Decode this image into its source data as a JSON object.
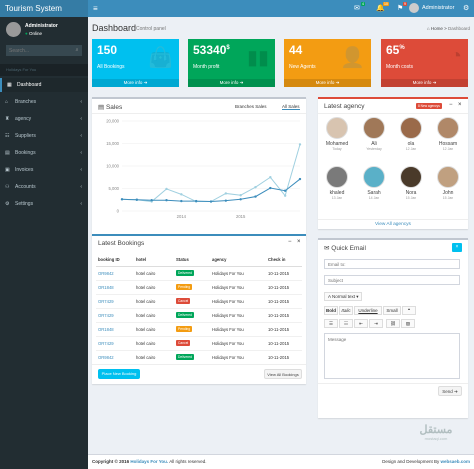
{
  "app": {
    "title": "Tourism System"
  },
  "topbar": {
    "badge_mail": "4",
    "badge_notif": "10",
    "badge_flag": "9",
    "user": "Administrator"
  },
  "sidebar": {
    "user_name": "Administrator",
    "status": "Online",
    "search_placeholder": "Search...",
    "section": "Holidays For You",
    "items": [
      {
        "label": "Dashboard",
        "active": true
      },
      {
        "label": "Branches"
      },
      {
        "label": "agency"
      },
      {
        "label": "Suppliers"
      },
      {
        "label": "Bookings"
      },
      {
        "label": "Invoices"
      },
      {
        "label": "Accounts"
      },
      {
        "label": "Settings"
      }
    ]
  },
  "header": {
    "title": "Dashboard",
    "subtitle": "Control panel",
    "crumb_home": "Home",
    "crumb_current": "Dashboard"
  },
  "stats": [
    {
      "value": "150",
      "label": "All Bookings",
      "more": "More info",
      "color": "#00c0ef",
      "icon": "bag-icon"
    },
    {
      "value": "53340",
      "suffix": "$",
      "label": "Month profit",
      "more": "More info",
      "color": "#00a65a",
      "icon": "bars-icon"
    },
    {
      "value": "44",
      "label": "New Agents",
      "more": "More info",
      "color": "#f39c12",
      "icon": "user-add-icon"
    },
    {
      "value": "65",
      "suffix": "%",
      "label": "Month costs",
      "more": "More info",
      "color": "#dd4b39",
      "icon": "pie-icon"
    }
  ],
  "sales": {
    "title": "Sales",
    "tab1": "Branches Sales",
    "tab2": "All Sales"
  },
  "chart_data": {
    "type": "line",
    "title": "",
    "x": [
      "2013 Q1",
      "2013 Q2",
      "2013 Q3",
      "2013 Q4",
      "2014 Q1",
      "2014 Q2",
      "2014 Q3",
      "2014 Q4",
      "2015 Q1",
      "2015 Q2",
      "2015 Q3",
      "2015 Q4",
      "2016 Q1"
    ],
    "series": [
      {
        "values": [
          2600,
          2500,
          2100,
          4900,
          3700,
          2100,
          2100,
          3900,
          3500,
          5300,
          7500,
          3400,
          14800
        ],
        "color": "#a0d0e0"
      },
      {
        "values": [
          2600,
          2500,
          2400,
          2400,
          2200,
          2200,
          2100,
          2300,
          2600,
          3200,
          5100,
          4500,
          7100
        ],
        "color": "#3c8dbc"
      }
    ],
    "xticks": [
      "2014",
      "2015"
    ],
    "yticks": [
      "0",
      "5,000",
      "10,000",
      "15,000",
      "20,000"
    ],
    "ylim": [
      0,
      20000
    ],
    "grid": true
  },
  "agency": {
    "title": "Latest agency",
    "badge": "8 New agencys",
    "view_all": "View All agencys",
    "people": [
      {
        "name": "Mohamed",
        "date": "Today"
      },
      {
        "name": "Ali",
        "date": "Yesterday"
      },
      {
        "name": "ola",
        "date": "12 Jan"
      },
      {
        "name": "Hossam",
        "date": "12 Jan"
      },
      {
        "name": "khaled",
        "date": "13 Jan"
      },
      {
        "name": "Sarah",
        "date": "14 Jan"
      },
      {
        "name": "Nora",
        "date": "15 Jan"
      },
      {
        "name": "John",
        "date": "15 Jan"
      }
    ]
  },
  "bookings": {
    "title": "Latest Bookings",
    "columns": [
      "booking ID",
      "hotel",
      "Status",
      "agency",
      "Check in"
    ],
    "rows": [
      [
        "OR9842",
        "hotel cairo",
        "Delivered",
        "Holidays For You",
        "10-11-2015"
      ],
      [
        "OR1848",
        "hotel cairo",
        "Pending",
        "Holidays For You",
        "10-11-2015"
      ],
      [
        "OR7429",
        "hotel cairo",
        "Cancel",
        "Holidays For You",
        "10-11-2015"
      ],
      [
        "OR7429",
        "hotel cairo",
        "Delivered",
        "Holidays For You",
        "10-11-2015"
      ],
      [
        "OR1848",
        "hotel cairo",
        "Pending",
        "Holidays For You",
        "10-11-2015"
      ],
      [
        "OR7429",
        "hotel cairo",
        "Cancel",
        "Holidays For You",
        "10-11-2015"
      ],
      [
        "OR9842",
        "hotel cairo",
        "Delivered",
        "Holidays For You",
        "10-11-2015"
      ]
    ],
    "status_colors": {
      "Delivered": "#00a65a",
      "Pending": "#f39c12",
      "Cancel": "#dd4b39"
    },
    "place_btn": "Place New Booking",
    "view_btn": "View All Bookings"
  },
  "email": {
    "title": "Quick Email",
    "to_placeholder": "Email to:",
    "subject_placeholder": "Subject",
    "font_select": "Normal text",
    "bold": "Bold",
    "italic": "Italic",
    "underline": "Underline",
    "small": "Small",
    "message_placeholder": "Message",
    "send": "Send"
  },
  "footer": {
    "copyright": "Copyright © 2016",
    "company": "Holidays For You.",
    "rights": "All rights reserved.",
    "design_by": "Design and Development By",
    "designer": "websaeb.com",
    "watermark": "مستقل",
    "watermark_sub": "mostaql.com"
  }
}
